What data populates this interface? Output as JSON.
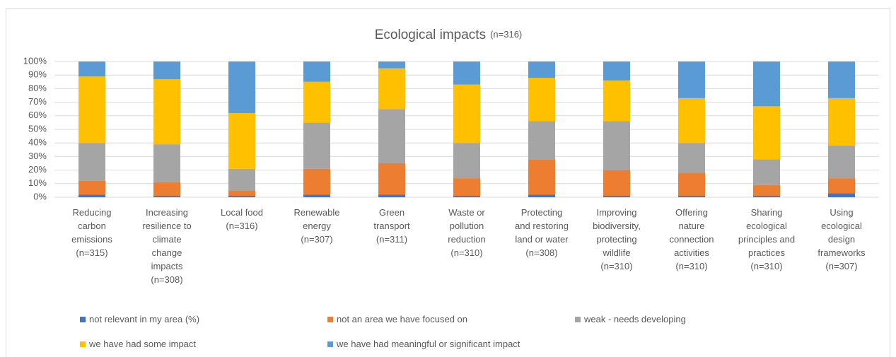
{
  "chart_data": {
    "type": "stacked_bar",
    "title": "Ecological impacts",
    "title_note": "(n=316)",
    "categories": [
      "Reducing\ncarbon\nemissions\n(n=315)",
      "Increasing\nresilience to\nclimate\nchange\nimpacts\n(n=308)",
      "Local food\n(n=316)",
      "Renewable\nenergy\n(n=307)",
      "Green\ntransport\n(n=311)",
      "Waste or\npollution\nreduction\n(n=310)",
      "Protecting\nand restoring\nland or water\n(n=308)",
      "Improving\nbiodiversity,\nprotecting\nwildlife\n(n=310)",
      "Offering\nnature\nconnection\nactivities\n(n=310)",
      "Sharing\necological\nprinciples and\npractices\n(n=310)",
      "Using\necological\ndesign\nframeworks\n(n=307)"
    ],
    "series": [
      {
        "name": "not relevant in my area (%)",
        "color": "#4472c4",
        "values": [
          2,
          1,
          1,
          2,
          2,
          1,
          2,
          1,
          1,
          1,
          3
        ]
      },
      {
        "name": "not an area we have focused on",
        "color": "#ed7d31",
        "values": [
          10,
          10,
          4,
          19,
          23,
          13,
          26,
          19,
          17,
          8,
          11
        ]
      },
      {
        "name": "weak - needs developing",
        "color": "#a5a5a5",
        "values": [
          28,
          28,
          16,
          34,
          40,
          26,
          28,
          36,
          22,
          19,
          24
        ]
      },
      {
        "name": "we have had some impact",
        "color": "#ffc000",
        "values": [
          49,
          48,
          41,
          30,
          30,
          43,
          32,
          30,
          33,
          39,
          35
        ]
      },
      {
        "name": "we have had meaningful or significant impact",
        "color": "#5b9bd5",
        "values": [
          11,
          13,
          38,
          15,
          5,
          17,
          12,
          14,
          27,
          33,
          27
        ]
      }
    ],
    "ylim": [
      0,
      100
    ],
    "yticks": [
      {
        "value": 0,
        "label": "0%"
      },
      {
        "value": 10,
        "label": "10%"
      },
      {
        "value": 20,
        "label": "20%"
      },
      {
        "value": 30,
        "label": "30%"
      },
      {
        "value": 40,
        "label": "40%"
      },
      {
        "value": 50,
        "label": "50%"
      },
      {
        "value": 60,
        "label": "60%"
      },
      {
        "value": 70,
        "label": "70%"
      },
      {
        "value": 80,
        "label": "80%"
      },
      {
        "value": 90,
        "label": "90%"
      },
      {
        "value": 100,
        "label": "100%"
      }
    ],
    "grid": true,
    "legend": "bottom"
  }
}
